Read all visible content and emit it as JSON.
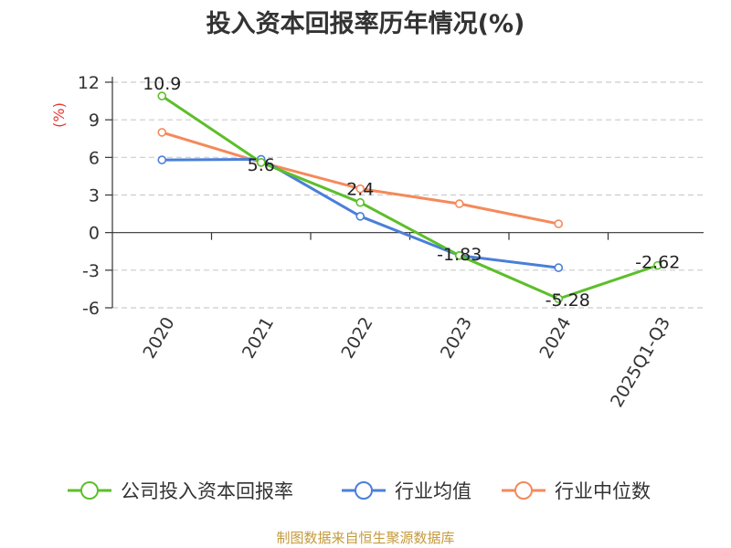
{
  "chart_data": {
    "type": "line",
    "title": "投入资本回报率历年情况(%)",
    "ylabel": "(%)",
    "xlabel": "",
    "ylim": [
      -6,
      12
    ],
    "yticks": [
      12,
      9,
      6,
      3,
      0,
      -3,
      -6
    ],
    "categories": [
      "2020",
      "2021",
      "2022",
      "2023",
      "2024",
      "2025Q1-Q3"
    ],
    "series": [
      {
        "name": "公司投入资本回报率",
        "color": "#5cbf2a",
        "values": [
          10.9,
          5.6,
          2.4,
          -1.83,
          -5.28,
          -2.62
        ],
        "labels": [
          "10.9",
          "5.6",
          "2.4",
          "-1.83",
          "-5.28",
          "-2.62"
        ]
      },
      {
        "name": "行业均值",
        "color": "#4a7fd8",
        "values": [
          5.8,
          5.85,
          1.3,
          -1.83,
          -2.8,
          null
        ]
      },
      {
        "name": "行业中位数",
        "color": "#f5895a",
        "values": [
          8.0,
          5.6,
          3.5,
          2.3,
          0.7,
          null
        ]
      }
    ]
  },
  "source": "制图数据来自恒生聚源数据库",
  "colors": {
    "axis_title": "#e53935",
    "grid": "#cccccc"
  }
}
